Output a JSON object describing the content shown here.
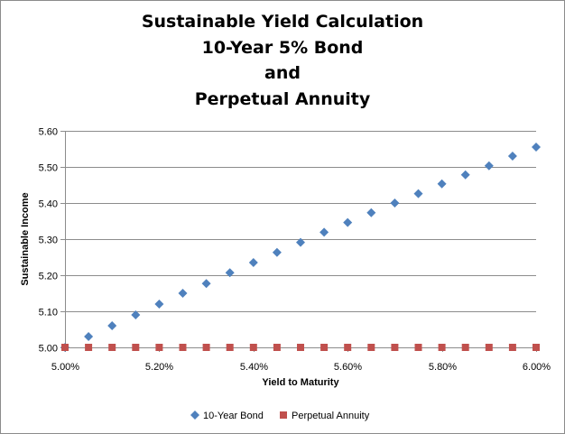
{
  "chart_data": {
    "type": "scatter",
    "title_lines": [
      "Sustainable Yield Calculation",
      "10-Year 5% Bond",
      "and",
      "Perpetual Annuity"
    ],
    "xlabel": "Yield to Maturity",
    "ylabel": "Sustainable Income",
    "xlim": [
      0.05,
      0.06
    ],
    "ylim": [
      5.0,
      5.6
    ],
    "x_ticks": [
      0.05,
      0.052,
      0.054,
      0.056,
      0.058,
      0.06
    ],
    "x_tick_labels": [
      "5.00%",
      "5.20%",
      "5.40%",
      "5.60%",
      "5.80%",
      "6.00%"
    ],
    "y_ticks": [
      5.0,
      5.1,
      5.2,
      5.3,
      5.4,
      5.5,
      5.6
    ],
    "y_tick_labels": [
      "5.00",
      "5.10",
      "5.20",
      "5.30",
      "5.40",
      "5.50",
      "5.60"
    ],
    "gridlines": "horizontal",
    "legend_position": "bottom",
    "x": [
      0.05,
      0.0505,
      0.051,
      0.0515,
      0.052,
      0.0525,
      0.053,
      0.0535,
      0.054,
      0.0545,
      0.055,
      0.0555,
      0.056,
      0.0565,
      0.057,
      0.0575,
      0.058,
      0.0585,
      0.059,
      0.0595,
      0.06
    ],
    "series": [
      {
        "name": "10-Year Bond",
        "marker": "diamond",
        "color": "#4f81bd",
        "values": [
          5.0,
          5.03,
          5.06,
          5.09,
          5.12,
          5.15,
          5.177,
          5.207,
          5.235,
          5.263,
          5.291,
          5.319,
          5.346,
          5.373,
          5.4,
          5.426,
          5.453,
          5.478,
          5.503,
          5.53,
          5.555
        ]
      },
      {
        "name": "Perpetual Annuity",
        "marker": "square",
        "color": "#c0504d",
        "values": [
          5.0,
          5.0,
          5.0,
          5.0,
          5.0,
          5.0,
          5.0,
          5.0,
          5.0,
          5.0,
          5.0,
          5.0,
          5.0,
          5.0,
          5.0,
          5.0,
          5.0,
          5.0,
          5.0,
          5.0,
          5.0
        ]
      }
    ]
  }
}
